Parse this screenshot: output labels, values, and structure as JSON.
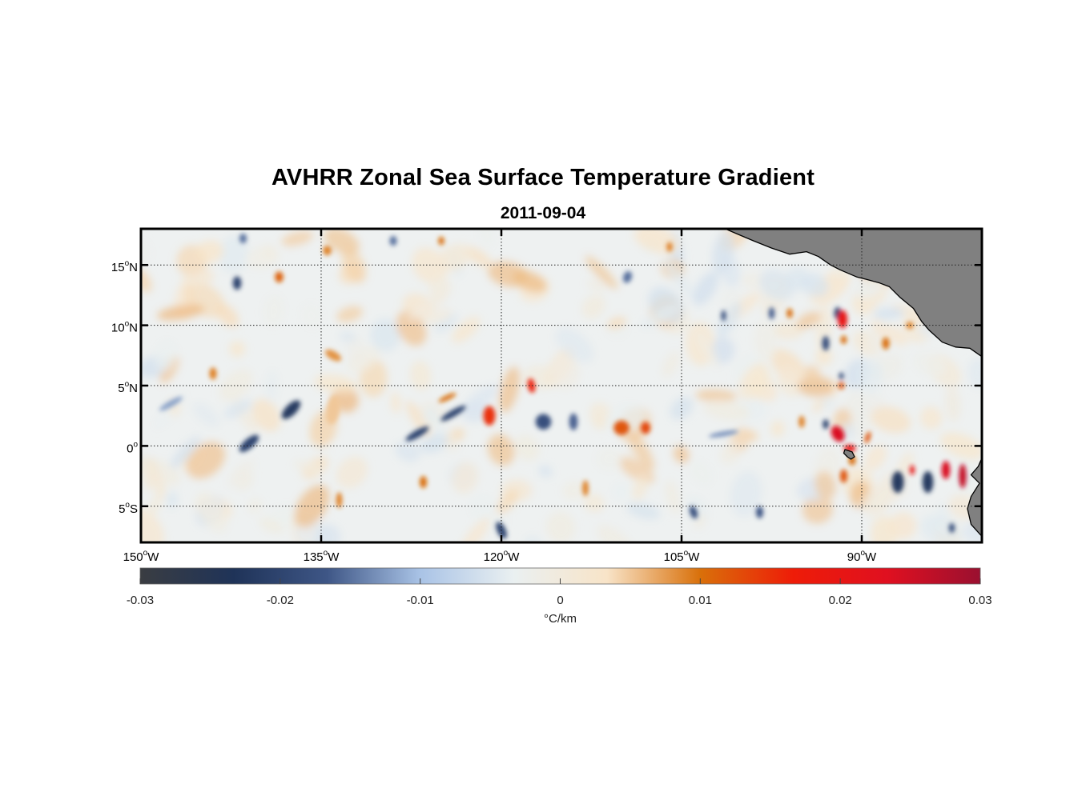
{
  "figure": {
    "title": "AVHRR Zonal Sea Surface Temperature Gradient",
    "subtitle": "2011-09-04"
  },
  "colors": {
    "land": "#808080",
    "frame": "#000000",
    "colormap": [
      "#3a3d42",
      "#1f3358",
      "#3e5686",
      "#a9c3e6",
      "#eaf0f1",
      "#f8e4c8",
      "#d9700a",
      "#ee1c08",
      "#e01020",
      "#9a1030"
    ]
  },
  "chart_data": {
    "type": "heatmap",
    "variable": "zonal sea surface temperature gradient",
    "units": "°C/km",
    "date": "2011-09-04",
    "lon_range": [
      -150,
      -80
    ],
    "lat_range": [
      -8,
      18
    ],
    "x_ticks": [
      {
        "value": -150,
        "deg": "150",
        "hemi": "W"
      },
      {
        "value": -135,
        "deg": "135",
        "hemi": "W"
      },
      {
        "value": -120,
        "deg": "120",
        "hemi": "W"
      },
      {
        "value": -105,
        "deg": "105",
        "hemi": "W"
      },
      {
        "value": -90,
        "deg": "90",
        "hemi": "W"
      }
    ],
    "y_ticks": [
      {
        "value": 15,
        "deg": "15",
        "hemi": "N"
      },
      {
        "value": 10,
        "deg": "10",
        "hemi": "N"
      },
      {
        "value": 5,
        "deg": "5",
        "hemi": "N"
      },
      {
        "value": 0,
        "deg": "0",
        "hemi": ""
      },
      {
        "value": -5,
        "deg": "5",
        "hemi": "S"
      }
    ],
    "grid": true,
    "colorbar": {
      "min": -0.03,
      "max": 0.03,
      "ticks": [
        "-0.03",
        "-0.02",
        "-0.01",
        "0",
        "0.01",
        "0.02",
        "0.03"
      ],
      "label": "°C/km",
      "placement": "bottom"
    },
    "features": [
      {
        "lon": -137.5,
        "lat": 3.0,
        "value": -0.022,
        "w": 2.0,
        "h": 0.9,
        "rot": -45
      },
      {
        "lon": -141.0,
        "lat": 0.2,
        "value": -0.02,
        "w": 2.0,
        "h": 0.8,
        "rot": -40
      },
      {
        "lon": -147.5,
        "lat": 3.5,
        "value": -0.012,
        "w": 2.2,
        "h": 0.5,
        "rot": -30
      },
      {
        "lon": -144.0,
        "lat": 6.0,
        "value": 0.009,
        "w": 0.6,
        "h": 1.0,
        "rot": 0
      },
      {
        "lon": -142.0,
        "lat": 13.5,
        "value": -0.02,
        "w": 0.7,
        "h": 1.1,
        "rot": 0
      },
      {
        "lon": -138.5,
        "lat": 14.0,
        "value": 0.011,
        "w": 0.7,
        "h": 0.9,
        "rot": 0
      },
      {
        "lon": -141.5,
        "lat": 17.2,
        "value": -0.015,
        "w": 0.6,
        "h": 0.8,
        "rot": 0
      },
      {
        "lon": -134.0,
        "lat": 7.5,
        "value": 0.008,
        "w": 1.5,
        "h": 0.7,
        "rot": 30
      },
      {
        "lon": -134.0,
        "lat": 3.0,
        "value": 0.005,
        "w": 1.2,
        "h": 2.5,
        "rot": 10
      },
      {
        "lon": -134.5,
        "lat": 16.2,
        "value": 0.009,
        "w": 0.7,
        "h": 0.8,
        "rot": 0
      },
      {
        "lon": -133.5,
        "lat": -4.5,
        "value": 0.009,
        "w": 0.5,
        "h": 1.3,
        "rot": 0
      },
      {
        "lon": -129.0,
        "lat": 17.0,
        "value": -0.015,
        "w": 0.6,
        "h": 0.8,
        "rot": 0
      },
      {
        "lon": -125.0,
        "lat": 17.0,
        "value": 0.01,
        "w": 0.5,
        "h": 0.7,
        "rot": 0
      },
      {
        "lon": -127.0,
        "lat": 1.0,
        "value": -0.02,
        "w": 2.2,
        "h": 0.6,
        "rot": -30
      },
      {
        "lon": -124.0,
        "lat": 2.7,
        "value": -0.02,
        "w": 2.4,
        "h": 0.55,
        "rot": -30
      },
      {
        "lon": -124.5,
        "lat": 4.0,
        "value": 0.01,
        "w": 1.6,
        "h": 0.4,
        "rot": -25
      },
      {
        "lon": -121.0,
        "lat": 2.5,
        "value": 0.015,
        "w": 1.0,
        "h": 1.6,
        "rot": 0
      },
      {
        "lon": -126.5,
        "lat": -3.0,
        "value": 0.01,
        "w": 0.6,
        "h": 1.0,
        "rot": 0
      },
      {
        "lon": -120.0,
        "lat": -7.0,
        "value": -0.02,
        "w": 0.7,
        "h": 1.5,
        "rot": -25
      },
      {
        "lon": -117.5,
        "lat": 5.0,
        "value": 0.016,
        "w": 0.6,
        "h": 1.2,
        "rot": -10
      },
      {
        "lon": -116.5,
        "lat": 2.0,
        "value": -0.018,
        "w": 1.3,
        "h": 1.3,
        "rot": -30
      },
      {
        "lon": -114.0,
        "lat": 2.0,
        "value": -0.016,
        "w": 0.7,
        "h": 1.4,
        "rot": 0
      },
      {
        "lon": -113.0,
        "lat": -3.5,
        "value": 0.009,
        "w": 0.5,
        "h": 1.3,
        "rot": 0
      },
      {
        "lon": -110.0,
        "lat": 1.5,
        "value": 0.012,
        "w": 1.3,
        "h": 1.2,
        "rot": 0
      },
      {
        "lon": -108.0,
        "lat": 1.5,
        "value": 0.013,
        "w": 0.8,
        "h": 1.0,
        "rot": 0
      },
      {
        "lon": -109.5,
        "lat": 14.0,
        "value": -0.015,
        "w": 0.7,
        "h": 1.0,
        "rot": 20
      },
      {
        "lon": -106.0,
        "lat": 16.5,
        "value": 0.009,
        "w": 0.5,
        "h": 0.8,
        "rot": 0
      },
      {
        "lon": -104.0,
        "lat": -5.5,
        "value": -0.018,
        "w": 0.6,
        "h": 1.1,
        "rot": -20
      },
      {
        "lon": -101.5,
        "lat": 1.0,
        "value": -0.013,
        "w": 2.5,
        "h": 0.4,
        "rot": -10
      },
      {
        "lon": -101.5,
        "lat": 10.8,
        "value": -0.018,
        "w": 0.4,
        "h": 0.9,
        "rot": 0
      },
      {
        "lon": -98.5,
        "lat": -5.5,
        "value": -0.017,
        "w": 0.6,
        "h": 1.0,
        "rot": 0
      },
      {
        "lon": -97.5,
        "lat": 11.0,
        "value": -0.016,
        "w": 0.5,
        "h": 1.0,
        "rot": 0
      },
      {
        "lon": -96.0,
        "lat": 11.0,
        "value": 0.01,
        "w": 0.5,
        "h": 0.8,
        "rot": 0
      },
      {
        "lon": -95.0,
        "lat": 2.0,
        "value": 0.009,
        "w": 0.5,
        "h": 1.0,
        "rot": 0
      },
      {
        "lon": -93.0,
        "lat": 8.5,
        "value": -0.018,
        "w": 0.6,
        "h": 1.2,
        "rot": 0
      },
      {
        "lon": -93.0,
        "lat": 1.8,
        "value": -0.02,
        "w": 0.5,
        "h": 0.8,
        "rot": 0
      },
      {
        "lon": -92.0,
        "lat": 11.0,
        "value": -0.02,
        "w": 0.6,
        "h": 1.0,
        "rot": 0
      },
      {
        "lon": -91.6,
        "lat": 10.5,
        "value": 0.02,
        "w": 0.8,
        "h": 1.5,
        "rot": 0
      },
      {
        "lon": -91.5,
        "lat": 8.8,
        "value": 0.01,
        "w": 0.5,
        "h": 0.7,
        "rot": 0
      },
      {
        "lon": -91.7,
        "lat": 5.8,
        "value": -0.018,
        "w": 0.4,
        "h": 0.6,
        "rot": 0
      },
      {
        "lon": -91.7,
        "lat": 5.0,
        "value": 0.012,
        "w": 0.5,
        "h": 0.6,
        "rot": 0
      },
      {
        "lon": -92.0,
        "lat": 1.0,
        "value": 0.024,
        "w": 1.0,
        "h": 1.4,
        "rot": -30
      },
      {
        "lon": -91.0,
        "lat": -0.2,
        "value": 0.02,
        "w": 1.0,
        "h": 0.6,
        "rot": 0
      },
      {
        "lon": -90.8,
        "lat": -1.2,
        "value": 0.01,
        "w": 0.6,
        "h": 0.8,
        "rot": 0
      },
      {
        "lon": -91.5,
        "lat": -2.5,
        "value": 0.012,
        "w": 0.6,
        "h": 1.1,
        "rot": 0
      },
      {
        "lon": -89.5,
        "lat": 0.7,
        "value": 0.012,
        "w": 0.4,
        "h": 1.0,
        "rot": 20
      },
      {
        "lon": -88.0,
        "lat": 8.5,
        "value": 0.01,
        "w": 0.6,
        "h": 1.0,
        "rot": 0
      },
      {
        "lon": -86.0,
        "lat": 10.0,
        "value": 0.009,
        "w": 0.6,
        "h": 0.6,
        "rot": 0
      },
      {
        "lon": -87.0,
        "lat": -3.0,
        "value": -0.022,
        "w": 1.0,
        "h": 1.8,
        "rot": 0
      },
      {
        "lon": -84.5,
        "lat": -3.0,
        "value": -0.022,
        "w": 0.9,
        "h": 1.8,
        "rot": 0
      },
      {
        "lon": -85.8,
        "lat": -2.0,
        "value": 0.02,
        "w": 0.4,
        "h": 0.8,
        "rot": 0
      },
      {
        "lon": -83.0,
        "lat": -2.0,
        "value": 0.024,
        "w": 0.7,
        "h": 1.5,
        "rot": 0
      },
      {
        "lon": -81.6,
        "lat": -2.5,
        "value": 0.026,
        "w": 0.6,
        "h": 2.0,
        "rot": 0
      },
      {
        "lon": -82.5,
        "lat": -6.8,
        "value": -0.018,
        "w": 0.5,
        "h": 0.8,
        "rot": 0
      }
    ]
  }
}
